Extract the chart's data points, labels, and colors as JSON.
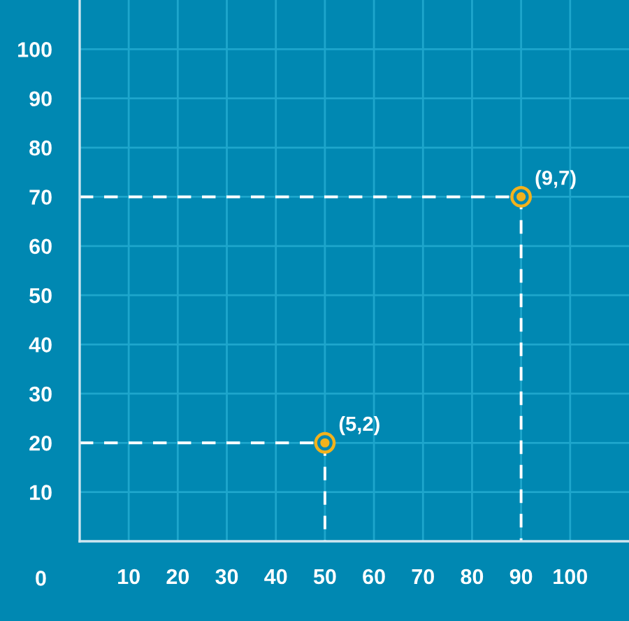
{
  "chart_data": {
    "type": "scatter",
    "xlim": [
      0,
      112
    ],
    "ylim": [
      0,
      110
    ],
    "xticks": [
      10,
      20,
      30,
      40,
      50,
      60,
      70,
      80,
      90,
      100
    ],
    "yticks": [
      10,
      20,
      30,
      40,
      50,
      60,
      70,
      80,
      90,
      100
    ],
    "grid": true,
    "annotations": [
      "0",
      {
        "text": "(5,2)",
        "x": 50,
        "y": 20
      },
      {
        "text": "(9,7)",
        "x": 90,
        "y": 70
      }
    ],
    "series": [
      {
        "type": "line",
        "color": "#ffffff",
        "line_style": "dashed",
        "marker": "none",
        "x": [
          0,
          50,
          50
        ],
        "values": [
          20,
          20,
          0
        ]
      },
      {
        "type": "line",
        "color": "#ffffff",
        "line_style": "dashed",
        "marker": "none",
        "x": [
          0,
          90,
          90
        ],
        "values": [
          70,
          70,
          0
        ]
      },
      {
        "color": "#f2b21c",
        "marker": "circle",
        "x": [
          50,
          90
        ],
        "values": [
          20,
          70
        ]
      }
    ]
  }
}
